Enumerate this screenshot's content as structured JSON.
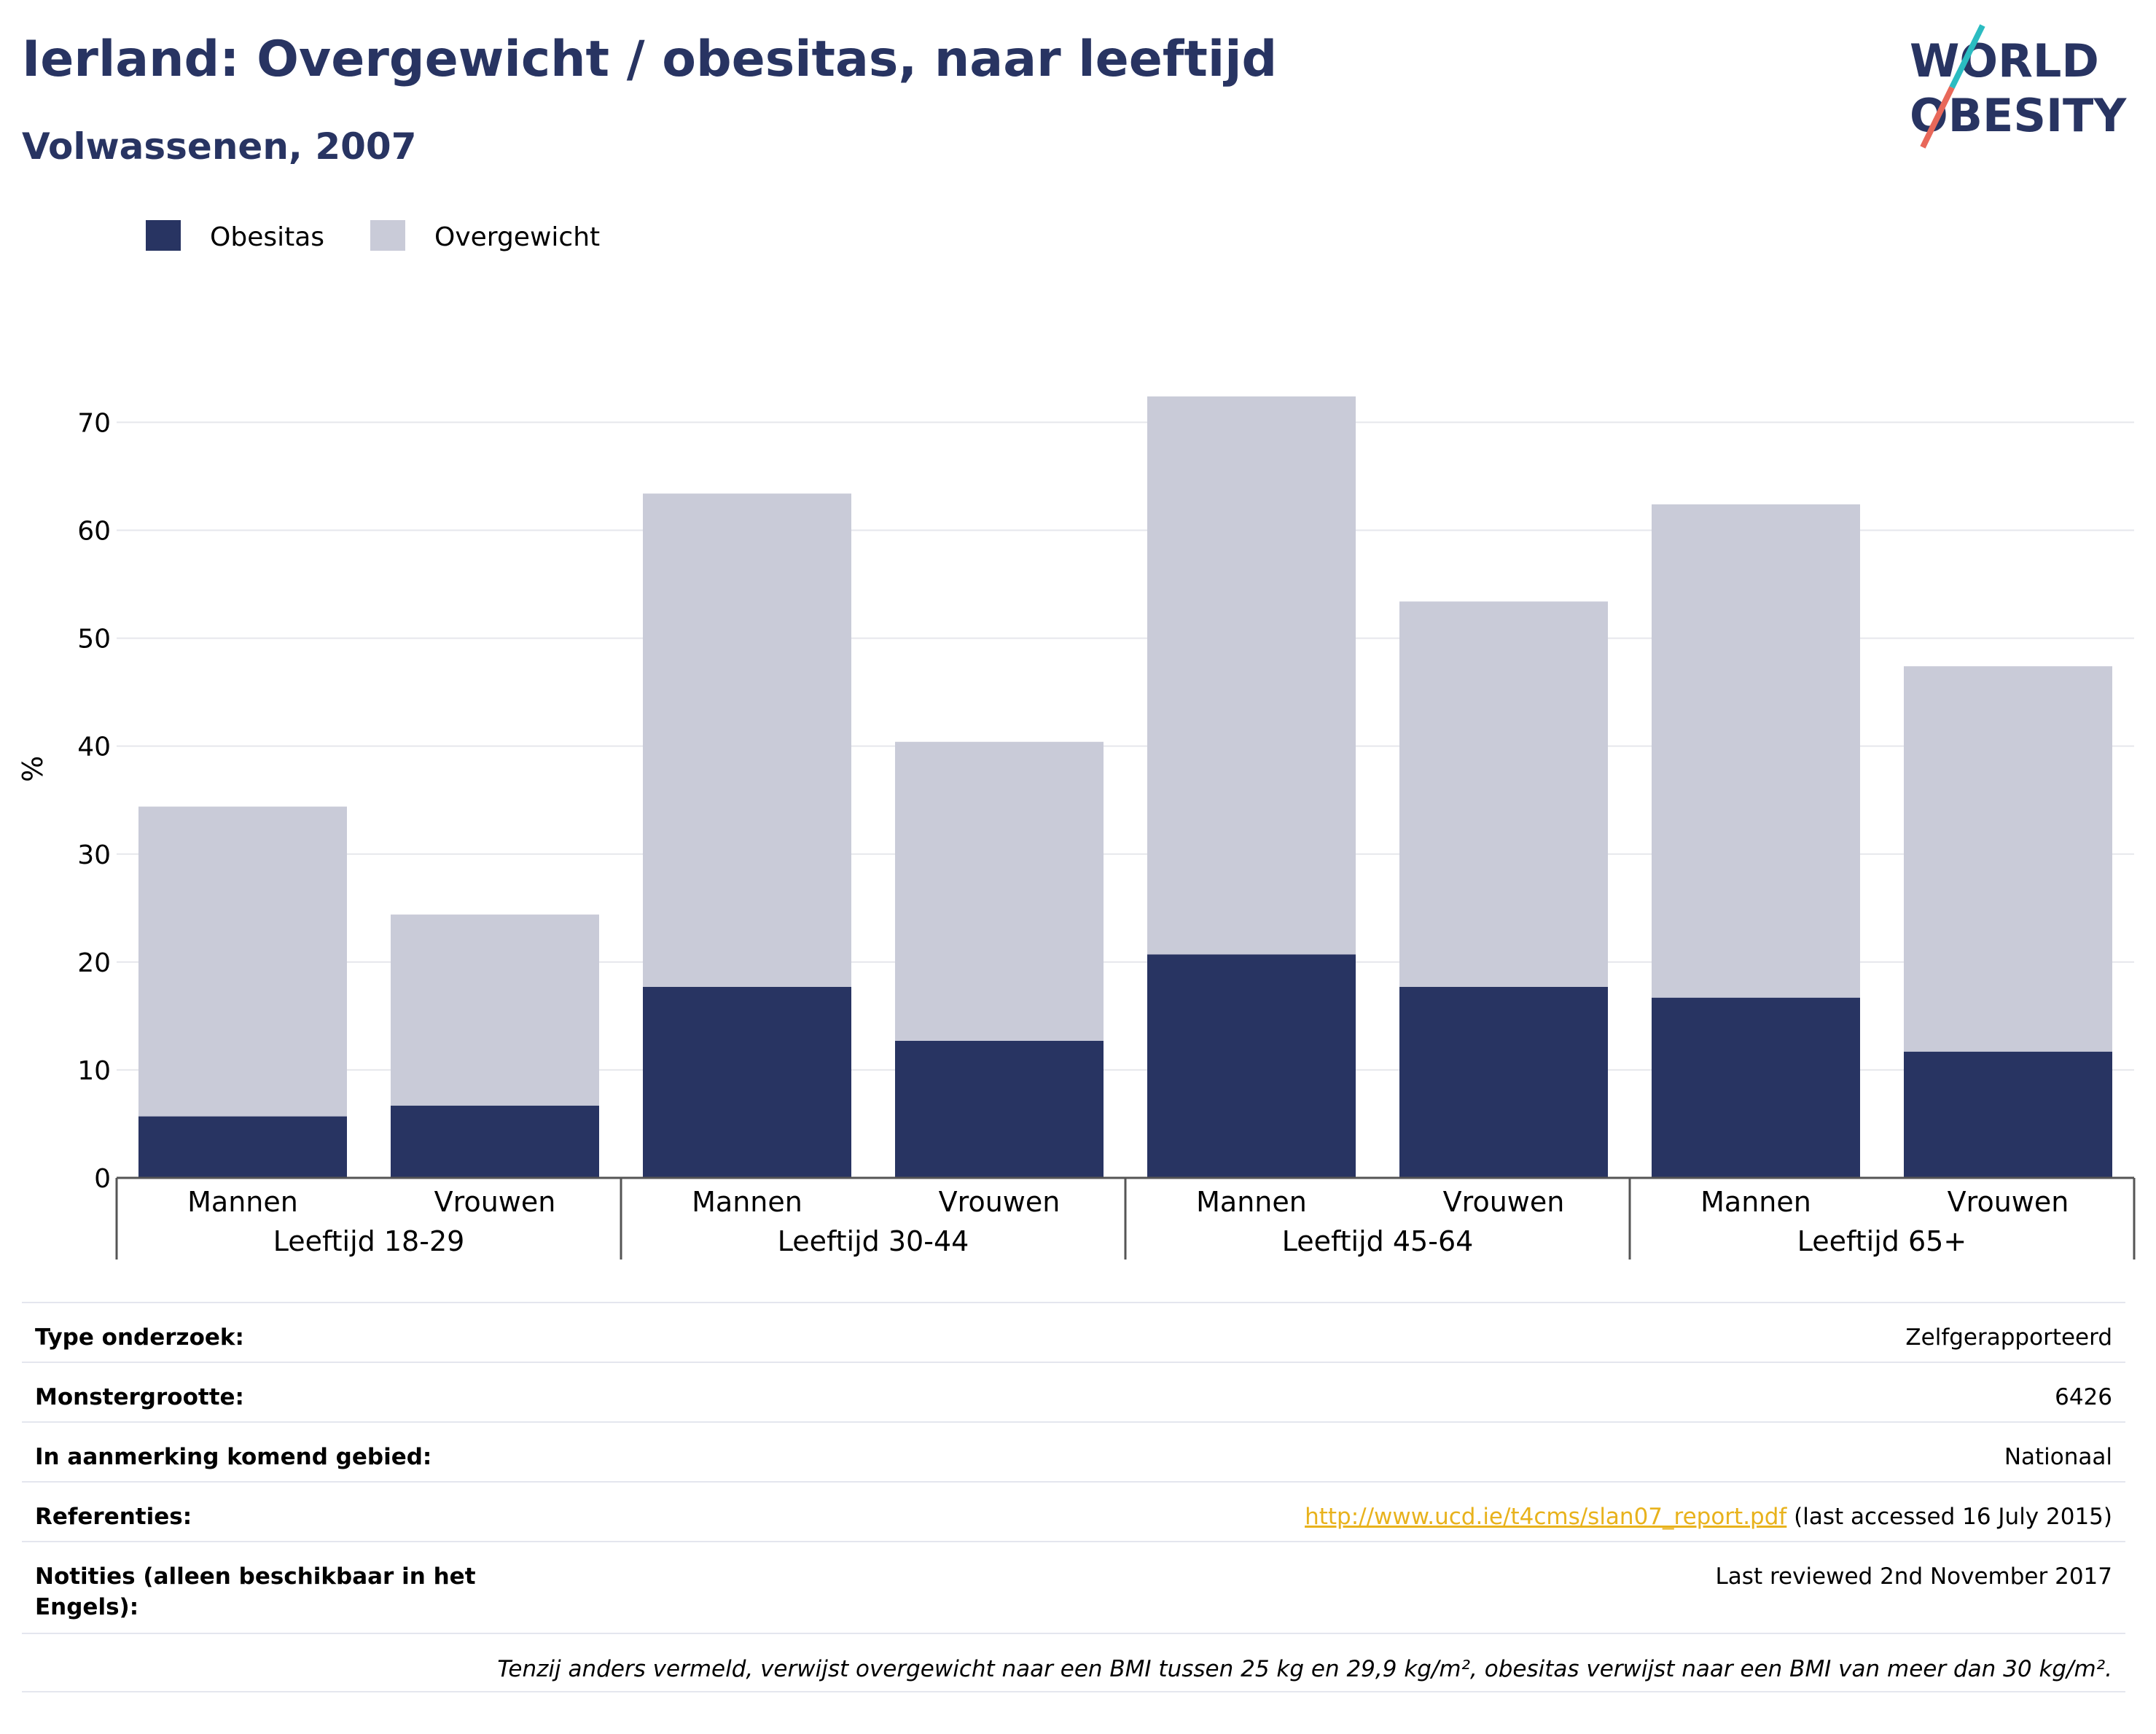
{
  "header": {
    "title": "Ierland: Overgewicht / obesitas, naar leeftijd",
    "subtitle": "Volwassenen, 2007",
    "logo_line1": "WORLD",
    "logo_line2": "OBESITY"
  },
  "chart_data": {
    "type": "bar",
    "stacked": true,
    "ylabel": "%",
    "ylim": [
      0,
      73
    ],
    "yticks": [
      0,
      10,
      20,
      30,
      40,
      50,
      60,
      70
    ],
    "grid": true,
    "legend_position": "top-left",
    "groups": [
      "Leeftijd 18-29",
      "Leeftijd 30-44",
      "Leeftijd 45-64",
      "Leeftijd 65+"
    ],
    "categories": [
      "Mannen",
      "Vrouwen",
      "Mannen",
      "Vrouwen",
      "Mannen",
      "Vrouwen",
      "Mannen",
      "Vrouwen"
    ],
    "series": [
      {
        "name": "Obesitas",
        "color": "#283462",
        "values": [
          5.7,
          6.7,
          17.7,
          12.7,
          20.7,
          17.7,
          16.7,
          11.7
        ]
      },
      {
        "name": "Overgewicht",
        "color": "#c9cbd8",
        "values": [
          28.7,
          17.7,
          45.7,
          27.7,
          51.7,
          35.7,
          45.7,
          35.7
        ]
      }
    ]
  },
  "info": {
    "rows": [
      {
        "label": "Type onderzoek:",
        "value": "Zelfgerapporteerd"
      },
      {
        "label": "Monstergrootte:",
        "value": "6426"
      },
      {
        "label": "In aanmerking komend gebied:",
        "value": "Nationaal"
      }
    ],
    "references": {
      "label": "Referenties:",
      "link": "http://www.ucd.ie/t4cms/slan07_report.pdf",
      "suffix": " (last accessed 16 July 2015)"
    },
    "notes": {
      "label": "Notities (alleen beschikbaar in het Engels):",
      "value": "Last reviewed 2nd November 2017"
    },
    "footnote": "Tenzij anders vermeld, verwijst overgewicht naar een BMI tussen 25 kg en 29,9 kg/m², obesitas verwijst naar een BMI van meer dan 30 kg/m²."
  }
}
